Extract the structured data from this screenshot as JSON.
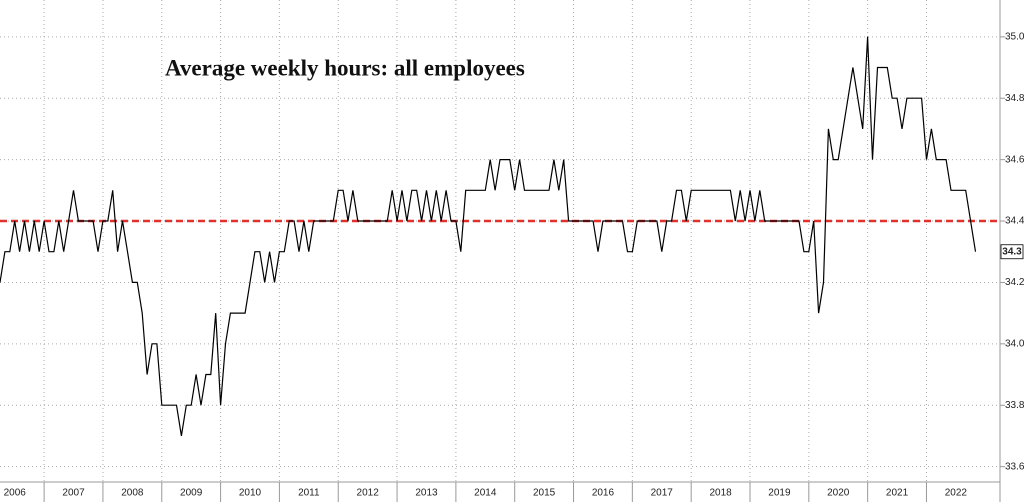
{
  "chart_data": {
    "type": "line",
    "title": "Average weekly hours: all employees",
    "x": [
      "2006-04",
      "2006-05",
      "2006-06",
      "2006-07",
      "2006-08",
      "2006-09",
      "2006-10",
      "2006-11",
      "2006-12",
      "2007-01",
      "2007-02",
      "2007-03",
      "2007-04",
      "2007-05",
      "2007-06",
      "2007-07",
      "2007-08",
      "2007-09",
      "2007-10",
      "2007-11",
      "2007-12",
      "2008-01",
      "2008-02",
      "2008-03",
      "2008-04",
      "2008-05",
      "2008-06",
      "2008-07",
      "2008-08",
      "2008-09",
      "2008-10",
      "2008-11",
      "2008-12",
      "2009-01",
      "2009-02",
      "2009-03",
      "2009-04",
      "2009-05",
      "2009-06",
      "2009-07",
      "2009-08",
      "2009-09",
      "2009-10",
      "2009-11",
      "2009-12",
      "2010-01",
      "2010-02",
      "2010-03",
      "2010-04",
      "2010-05",
      "2010-06",
      "2010-07",
      "2010-08",
      "2010-09",
      "2010-10",
      "2010-11",
      "2010-12",
      "2011-01",
      "2011-02",
      "2011-03",
      "2011-04",
      "2011-05",
      "2011-06",
      "2011-07",
      "2011-08",
      "2011-09",
      "2011-10",
      "2011-11",
      "2011-12",
      "2012-01",
      "2012-02",
      "2012-03",
      "2012-04",
      "2012-05",
      "2012-06",
      "2012-07",
      "2012-08",
      "2012-09",
      "2012-10",
      "2012-11",
      "2012-12",
      "2013-01",
      "2013-02",
      "2013-03",
      "2013-04",
      "2013-05",
      "2013-06",
      "2013-07",
      "2013-08",
      "2013-09",
      "2013-10",
      "2013-11",
      "2013-12",
      "2014-01",
      "2014-02",
      "2014-03",
      "2014-04",
      "2014-05",
      "2014-06",
      "2014-07",
      "2014-08",
      "2014-09",
      "2014-10",
      "2014-11",
      "2014-12",
      "2015-01",
      "2015-02",
      "2015-03",
      "2015-04",
      "2015-05",
      "2015-06",
      "2015-07",
      "2015-08",
      "2015-09",
      "2015-10",
      "2015-11",
      "2015-12",
      "2016-01",
      "2016-02",
      "2016-03",
      "2016-04",
      "2016-05",
      "2016-06",
      "2016-07",
      "2016-08",
      "2016-09",
      "2016-10",
      "2016-11",
      "2016-12",
      "2017-01",
      "2017-02",
      "2017-03",
      "2017-04",
      "2017-05",
      "2017-06",
      "2017-07",
      "2017-08",
      "2017-09",
      "2017-10",
      "2017-11",
      "2017-12",
      "2018-01",
      "2018-02",
      "2018-03",
      "2018-04",
      "2018-05",
      "2018-06",
      "2018-07",
      "2018-08",
      "2018-09",
      "2018-10",
      "2018-11",
      "2018-12",
      "2019-01",
      "2019-02",
      "2019-03",
      "2019-04",
      "2019-05",
      "2019-06",
      "2019-07",
      "2019-08",
      "2019-09",
      "2019-10",
      "2019-11",
      "2019-12",
      "2020-01",
      "2020-02",
      "2020-03",
      "2020-04",
      "2020-05",
      "2020-06",
      "2020-07",
      "2020-08",
      "2020-09",
      "2020-10",
      "2020-11",
      "2020-12",
      "2021-01",
      "2021-02",
      "2021-03",
      "2021-04",
      "2021-05",
      "2021-06",
      "2021-07",
      "2021-08",
      "2021-09",
      "2021-10",
      "2021-11",
      "2021-12",
      "2022-01",
      "2022-02",
      "2022-03",
      "2022-04",
      "2022-05",
      "2022-06",
      "2022-07",
      "2022-08",
      "2022-09",
      "2022-10",
      "2022-11"
    ],
    "series": [
      {
        "color": "#000000",
        "values": [
          34.2,
          34.3,
          34.3,
          34.4,
          34.3,
          34.4,
          34.3,
          34.4,
          34.3,
          34.4,
          34.3,
          34.3,
          34.4,
          34.3,
          34.4,
          34.5,
          34.4,
          34.4,
          34.4,
          34.4,
          34.3,
          34.4,
          34.4,
          34.5,
          34.3,
          34.4,
          34.3,
          34.2,
          34.2,
          34.1,
          33.9,
          34.0,
          34.0,
          33.8,
          33.8,
          33.8,
          33.8,
          33.7,
          33.8,
          33.8,
          33.9,
          33.8,
          33.9,
          33.9,
          34.1,
          33.8,
          34.0,
          34.1,
          34.1,
          34.1,
          34.1,
          34.2,
          34.3,
          34.3,
          34.2,
          34.3,
          34.2,
          34.3,
          34.3,
          34.4,
          34.4,
          34.3,
          34.4,
          34.3,
          34.4,
          34.4,
          34.4,
          34.4,
          34.4,
          34.5,
          34.5,
          34.4,
          34.5,
          34.4,
          34.4,
          34.4,
          34.4,
          34.4,
          34.4,
          34.4,
          34.5,
          34.4,
          34.5,
          34.4,
          34.5,
          34.5,
          34.4,
          34.5,
          34.4,
          34.5,
          34.4,
          34.5,
          34.4,
          34.4,
          34.3,
          34.5,
          34.5,
          34.5,
          34.5,
          34.5,
          34.6,
          34.5,
          34.6,
          34.6,
          34.6,
          34.5,
          34.6,
          34.5,
          34.5,
          34.5,
          34.5,
          34.5,
          34.5,
          34.6,
          34.5,
          34.6,
          34.4,
          34.4,
          34.4,
          34.4,
          34.4,
          34.4,
          34.3,
          34.4,
          34.4,
          34.4,
          34.4,
          34.4,
          34.3,
          34.3,
          34.4,
          34.4,
          34.4,
          34.4,
          34.4,
          34.3,
          34.4,
          34.4,
          34.5,
          34.5,
          34.4,
          34.5,
          34.5,
          34.5,
          34.5,
          34.5,
          34.5,
          34.5,
          34.5,
          34.5,
          34.4,
          34.5,
          34.4,
          34.5,
          34.4,
          34.5,
          34.4,
          34.4,
          34.4,
          34.4,
          34.4,
          34.4,
          34.4,
          34.4,
          34.3,
          34.3,
          34.4,
          34.1,
          34.2,
          34.7,
          34.6,
          34.6,
          34.7,
          34.8,
          34.9,
          34.8,
          34.7,
          35.0,
          34.6,
          34.9,
          34.9,
          34.9,
          34.8,
          34.8,
          34.7,
          34.8,
          34.8,
          34.8,
          34.8,
          34.6,
          34.7,
          34.6,
          34.6,
          34.6,
          34.5,
          34.5,
          34.5,
          34.5,
          34.4,
          34.3
        ]
      }
    ],
    "reference_line": {
      "value": 34.4,
      "color": "#e0312f"
    },
    "xlim": [
      2006.25,
      2023.25
    ],
    "xticks": [
      2006,
      2007,
      2008,
      2009,
      2010,
      2011,
      2012,
      2013,
      2014,
      2015,
      2016,
      2017,
      2018,
      2019,
      2020,
      2021,
      2022
    ],
    "ylim": [
      33.55,
      35.12
    ],
    "yticks": [
      33.6,
      33.8,
      {
        "value": 34.0,
        "label": "34.0"
      },
      34.2,
      34.4,
      34.6,
      34.8,
      {
        "value": 35.0,
        "label": "35.0"
      }
    ],
    "grid": true
  }
}
